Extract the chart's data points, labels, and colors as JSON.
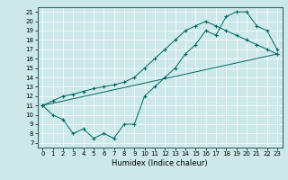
{
  "xlabel": "Humidex (Indice chaleur)",
  "bg_color": "#cce8e8",
  "grid_color": "#ffffff",
  "line_color": "#006666",
  "xlim": [
    -0.5,
    23.5
  ],
  "ylim": [
    6.5,
    21.5
  ],
  "yticks": [
    7,
    8,
    9,
    10,
    11,
    12,
    13,
    14,
    15,
    16,
    17,
    18,
    19,
    20,
    21
  ],
  "xticks": [
    0,
    1,
    2,
    3,
    4,
    5,
    6,
    7,
    8,
    9,
    10,
    11,
    12,
    13,
    14,
    15,
    16,
    17,
    18,
    19,
    20,
    21,
    22,
    23
  ],
  "curve1_x": [
    0,
    1,
    2,
    3,
    4,
    5,
    6,
    7,
    8,
    9,
    10,
    11,
    12,
    13,
    14,
    15,
    16,
    17,
    18,
    19,
    20,
    21,
    22,
    23
  ],
  "curve1_y": [
    11,
    10,
    9.5,
    8,
    8.5,
    7.5,
    8,
    7.5,
    9,
    9,
    12,
    13,
    14,
    15,
    16.5,
    17.5,
    19,
    18.5,
    20.5,
    21,
    21,
    19.5,
    19,
    17
  ],
  "curve2_x": [
    0,
    1,
    2,
    3,
    4,
    5,
    6,
    7,
    8,
    9,
    10,
    11,
    12,
    13,
    14,
    15,
    16,
    17,
    18,
    19,
    20,
    21,
    22,
    23
  ],
  "curve2_y": [
    11,
    11.5,
    12,
    12.2,
    12.5,
    12.8,
    13,
    13.2,
    13.5,
    14,
    15,
    16,
    17,
    18,
    19,
    19.5,
    20,
    19.5,
    19,
    18.5,
    18,
    17.5,
    17,
    16.5
  ],
  "curve3_x": [
    0,
    23
  ],
  "curve3_y": [
    11,
    16.5
  ]
}
